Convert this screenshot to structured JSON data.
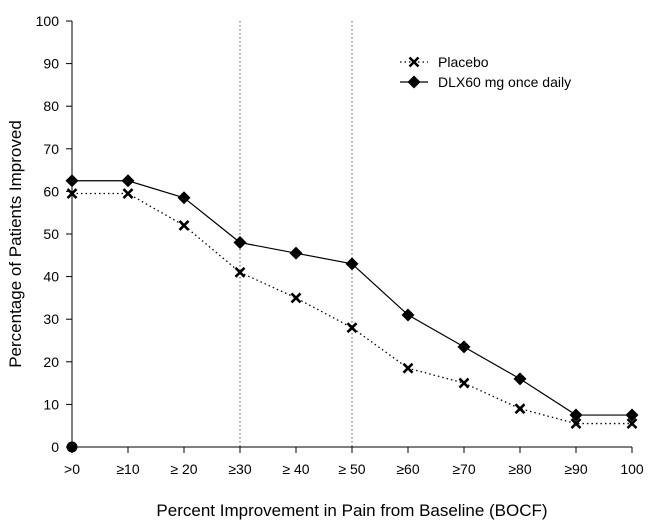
{
  "chart_data": {
    "type": "line",
    "title": "",
    "xlabel": "Percent Improvement in Pain from Baseline (BOCF)",
    "ylabel": "Percentage of Patients Improved",
    "categories": [
      ">0",
      "≥10",
      "≥ 20",
      "≥30",
      "≥ 40",
      "≥ 50",
      "≥60",
      "≥70",
      "≥80",
      "≥90",
      "100"
    ],
    "ylim": [
      0,
      100
    ],
    "yticks": [
      0,
      10,
      20,
      30,
      40,
      50,
      60,
      70,
      80,
      90,
      100
    ],
    "reference_lines_at": [
      "≥30",
      "≥ 50"
    ],
    "grid": false,
    "legend_position": "top-right",
    "series": [
      {
        "name": "Placebo",
        "style": "dotted",
        "marker": "x",
        "color": "#000000",
        "values": [
          59.5,
          59.5,
          52,
          41,
          35,
          28,
          18.5,
          15,
          9,
          5.5,
          5.5
        ]
      },
      {
        "name": "DLX60 mg once daily",
        "style": "solid",
        "marker": "diamond",
        "color": "#000000",
        "values": [
          62.5,
          62.5,
          58.5,
          48,
          45.5,
          43,
          31,
          23.5,
          16,
          7.5,
          7.5
        ]
      }
    ],
    "origin_marker": true
  }
}
